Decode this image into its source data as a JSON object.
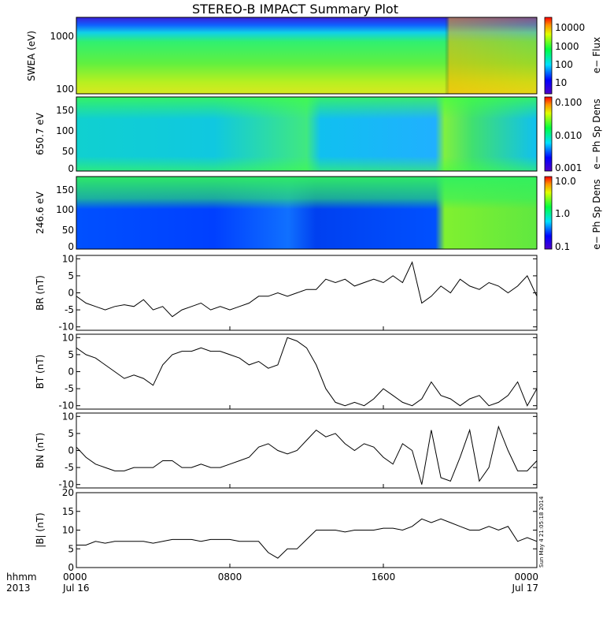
{
  "title": "STEREO-B IMPACT Summary Plot",
  "stamp": "Sun May  4 21:05:18 2014",
  "x_axis": {
    "label_line1": "hhmm",
    "label_line2": "2013",
    "ticks": [
      {
        "hour": 0,
        "label": "0000",
        "date": "Jul 16"
      },
      {
        "hour": 8,
        "label": "0800",
        "date": ""
      },
      {
        "hour": 16,
        "label": "1600",
        "date": ""
      },
      {
        "hour": 24,
        "label": "0000",
        "date": "Jul 17"
      }
    ]
  },
  "spectrograms": {
    "swea": {
      "ylabel": "SWEA (eV)",
      "yticks": [
        "1000",
        "100"
      ],
      "colorbar_label": "e− Flux",
      "colorbar_ticks": [
        "10000",
        "1000",
        "100",
        "10"
      ]
    },
    "pad650": {
      "ylabel": "650.7 eV",
      "yticks": [
        "150",
        "100",
        "50",
        "0"
      ],
      "colorbar_label": "e− Ph Sp Dens",
      "colorbar_ticks": [
        "0.100",
        "0.010",
        "0.001"
      ]
    },
    "pad246": {
      "ylabel": "246.6 eV",
      "yticks": [
        "150",
        "100",
        "50",
        "0"
      ],
      "colorbar_label": "e− Ph Sp Dens",
      "colorbar_ticks": [
        "10.0",
        "1.0",
        "0.1"
      ]
    }
  },
  "chart_data": [
    {
      "type": "line",
      "name": "BR",
      "ylabel": "BR (nT)",
      "ylim": [
        -11,
        11
      ],
      "yticks": [
        "10",
        "5",
        "0",
        "-5",
        "-10"
      ],
      "x": [
        0,
        0.5,
        1,
        1.5,
        2,
        2.5,
        3,
        3.5,
        4,
        4.5,
        5,
        5.5,
        6,
        6.5,
        7,
        7.5,
        8,
        8.5,
        9,
        9.5,
        10,
        10.5,
        11,
        11.5,
        12,
        12.5,
        13,
        13.5,
        14,
        14.5,
        15,
        15.5,
        16,
        16.5,
        17,
        17.5,
        18,
        18.5,
        19,
        19.5,
        20,
        20.5,
        21,
        21.5,
        22,
        22.5,
        23,
        23.5,
        24
      ],
      "y": [
        -1,
        -3,
        -4,
        -5,
        -4,
        -3.5,
        -4,
        -2,
        -5,
        -4,
        -7,
        -5,
        -4,
        -3,
        -5,
        -4,
        -5,
        -4,
        -3,
        -1,
        -1,
        0,
        -1,
        0,
        1,
        1,
        4,
        3,
        4,
        2,
        3,
        4,
        3,
        5,
        3,
        9,
        -3,
        -1,
        2,
        0,
        4,
        2,
        1,
        3,
        2,
        0,
        2,
        5,
        -1
      ]
    },
    {
      "type": "line",
      "name": "BT",
      "ylabel": "BT (nT)",
      "ylim": [
        -11,
        11
      ],
      "yticks": [
        "10",
        "5",
        "0",
        "-5",
        "-10"
      ],
      "x": [
        0,
        0.5,
        1,
        1.5,
        2,
        2.5,
        3,
        3.5,
        4,
        4.5,
        5,
        5.5,
        6,
        6.5,
        7,
        7.5,
        8,
        8.5,
        9,
        9.5,
        10,
        10.5,
        11,
        11.5,
        12,
        12.5,
        13,
        13.5,
        14,
        14.5,
        15,
        15.5,
        16,
        16.5,
        17,
        17.5,
        18,
        18.5,
        19,
        19.5,
        20,
        20.5,
        21,
        21.5,
        22,
        22.5,
        23,
        23.5,
        24
      ],
      "y": [
        7,
        5,
        4,
        2,
        0,
        -2,
        -1,
        -2,
        -4,
        2,
        5,
        6,
        6,
        7,
        6,
        6,
        5,
        4,
        2,
        3,
        1,
        2,
        10,
        9,
        7,
        2,
        -5,
        -9,
        -10,
        -9,
        -10,
        -8,
        -5,
        -7,
        -9,
        -10,
        -8,
        -3,
        -7,
        -8,
        -10,
        -8,
        -7,
        -10,
        -9,
        -7,
        -3,
        -10,
        -5
      ]
    },
    {
      "type": "line",
      "name": "BN",
      "ylabel": "BN (nT)",
      "ylim": [
        -11,
        11
      ],
      "yticks": [
        "10",
        "5",
        "0",
        "-5",
        "-10"
      ],
      "x": [
        0,
        0.5,
        1,
        1.5,
        2,
        2.5,
        3,
        3.5,
        4,
        4.5,
        5,
        5.5,
        6,
        6.5,
        7,
        7.5,
        8,
        8.5,
        9,
        9.5,
        10,
        10.5,
        11,
        11.5,
        12,
        12.5,
        13,
        13.5,
        14,
        14.5,
        15,
        15.5,
        16,
        16.5,
        17,
        17.5,
        18,
        18.5,
        19,
        19.5,
        20,
        20.5,
        21,
        21.5,
        22,
        22.5,
        23,
        23.5,
        24
      ],
      "y": [
        1,
        -2,
        -4,
        -5,
        -6,
        -6,
        -5,
        -5,
        -5,
        -3,
        -3,
        -5,
        -5,
        -4,
        -5,
        -5,
        -4,
        -3,
        -2,
        1,
        2,
        0,
        -1,
        0,
        3,
        6,
        4,
        5,
        2,
        0,
        2,
        1,
        -2,
        -4,
        2,
        0,
        -10,
        6,
        -8,
        -9,
        -2,
        6,
        -9,
        -5,
        7,
        0,
        -6,
        -6,
        -3
      ]
    },
    {
      "type": "line",
      "name": "|B|",
      "ylabel": "|B| (nT)",
      "ylim": [
        0,
        20
      ],
      "yticks": [
        "20",
        "15",
        "10",
        "5",
        "0"
      ],
      "x": [
        0,
        0.5,
        1,
        1.5,
        2,
        2.5,
        3,
        3.5,
        4,
        4.5,
        5,
        5.5,
        6,
        6.5,
        7,
        7.5,
        8,
        8.5,
        9,
        9.5,
        10,
        10.5,
        11,
        11.5,
        12,
        12.5,
        13,
        13.5,
        14,
        14.5,
        15,
        15.5,
        16,
        16.5,
        17,
        17.5,
        18,
        18.5,
        19,
        19.5,
        20,
        20.5,
        21,
        21.5,
        22,
        22.5,
        23,
        23.5,
        24
      ],
      "y": [
        6,
        6,
        7,
        6.5,
        7,
        7,
        7,
        7,
        6.5,
        7,
        7.5,
        7.5,
        7.5,
        7,
        7.5,
        7.5,
        7.5,
        7,
        7,
        7,
        4,
        2.5,
        5,
        5,
        7.5,
        10,
        10,
        10,
        9.5,
        10,
        10,
        10,
        10.5,
        10.5,
        10,
        11,
        13,
        12,
        13,
        12,
        11,
        10,
        10,
        11,
        10,
        11,
        7,
        8,
        7
      ]
    }
  ]
}
